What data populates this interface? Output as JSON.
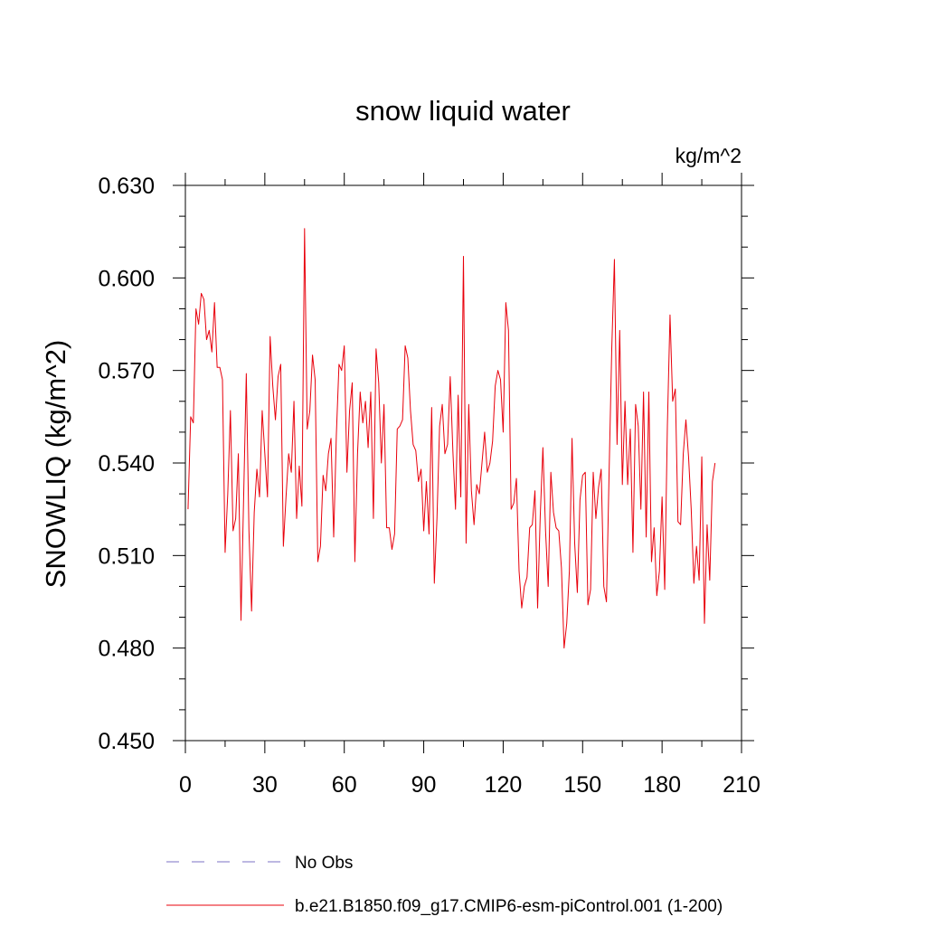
{
  "chart_data": {
    "type": "line",
    "title": "snow liquid water",
    "ylabel": "SNOWLIQ  (kg/m^2)",
    "units_label": "kg/m^2",
    "xlabel": "",
    "xlim": [
      0,
      210
    ],
    "ylim": [
      0.45,
      0.63
    ],
    "xticks": [
      0,
      30,
      60,
      90,
      120,
      150,
      180,
      210
    ],
    "xtick_labels": [
      "0",
      "30",
      "60",
      "90",
      "120",
      "150",
      "180",
      "210"
    ],
    "yticks": [
      0.45,
      0.48,
      0.51,
      0.54,
      0.57,
      0.6,
      0.63
    ],
    "ytick_labels": [
      "0.450",
      "0.480",
      "0.510",
      "0.540",
      "0.570",
      "0.600",
      "0.630"
    ],
    "grid": false,
    "legend_position": "bottom",
    "legend": [
      {
        "label": "No Obs",
        "color": "#7b72c6",
        "dash": "dashed"
      },
      {
        "label": "b.e21.B1850.f09_g17.CMIP6-esm-piControl.001 (1-200)",
        "color": "#e8000b",
        "dash": "solid"
      }
    ],
    "series": [
      {
        "name": "b.e21.B1850.f09_g17.CMIP6-esm-piControl.001 (1-200)",
        "color": "#e8000b",
        "x_start": 1,
        "x_step": 1,
        "values": [
          0.525,
          0.555,
          0.553,
          0.59,
          0.585,
          0.595,
          0.593,
          0.58,
          0.583,
          0.576,
          0.592,
          0.571,
          0.571,
          0.567,
          0.511,
          0.53,
          0.557,
          0.518,
          0.522,
          0.543,
          0.489,
          0.529,
          0.569,
          0.518,
          0.492,
          0.524,
          0.538,
          0.529,
          0.557,
          0.543,
          0.529,
          0.581,
          0.565,
          0.554,
          0.568,
          0.572,
          0.513,
          0.529,
          0.543,
          0.537,
          0.56,
          0.522,
          0.539,
          0.526,
          0.616,
          0.551,
          0.557,
          0.575,
          0.567,
          0.508,
          0.513,
          0.536,
          0.531,
          0.543,
          0.548,
          0.516,
          0.549,
          0.572,
          0.57,
          0.578,
          0.537,
          0.557,
          0.566,
          0.508,
          0.543,
          0.563,
          0.553,
          0.56,
          0.545,
          0.563,
          0.522,
          0.577,
          0.566,
          0.54,
          0.559,
          0.519,
          0.519,
          0.512,
          0.517,
          0.551,
          0.552,
          0.554,
          0.578,
          0.574,
          0.557,
          0.546,
          0.544,
          0.534,
          0.538,
          0.518,
          0.534,
          0.517,
          0.558,
          0.501,
          0.522,
          0.552,
          0.559,
          0.543,
          0.546,
          0.568,
          0.544,
          0.525,
          0.562,
          0.529,
          0.607,
          0.514,
          0.559,
          0.531,
          0.52,
          0.533,
          0.53,
          0.54,
          0.55,
          0.537,
          0.54,
          0.547,
          0.565,
          0.57,
          0.567,
          0.55,
          0.592,
          0.583,
          0.525,
          0.527,
          0.535,
          0.505,
          0.493,
          0.5,
          0.503,
          0.519,
          0.52,
          0.531,
          0.493,
          0.523,
          0.545,
          0.518,
          0.5,
          0.537,
          0.524,
          0.519,
          0.518,
          0.506,
          0.48,
          0.488,
          0.505,
          0.548,
          0.514,
          0.498,
          0.528,
          0.536,
          0.537,
          0.494,
          0.499,
          0.537,
          0.522,
          0.532,
          0.538,
          0.5,
          0.495,
          0.537,
          0.577,
          0.606,
          0.546,
          0.583,
          0.533,
          0.56,
          0.533,
          0.551,
          0.511,
          0.559,
          0.552,
          0.525,
          0.563,
          0.516,
          0.563,
          0.508,
          0.519,
          0.497,
          0.505,
          0.529,
          0.499,
          0.552,
          0.588,
          0.56,
          0.564,
          0.521,
          0.52,
          0.543,
          0.554,
          0.542,
          0.525,
          0.501,
          0.513,
          0.502,
          0.542,
          0.488,
          0.52,
          0.502,
          0.534,
          0.54
        ]
      }
    ]
  }
}
